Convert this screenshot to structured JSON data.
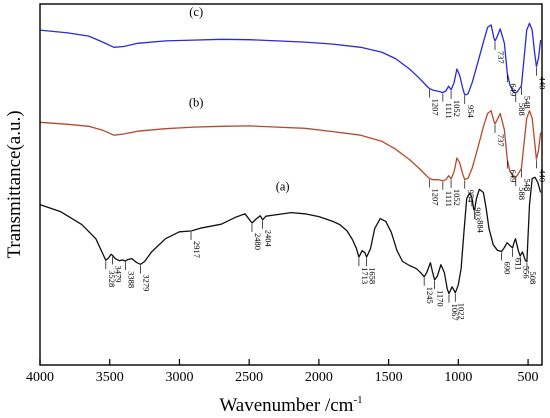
{
  "chart_data": {
    "type": "line",
    "xlabel": "Wavenumber /cm",
    "xlabel_sup": "-1",
    "ylabel": "Transmittance(a.u.)",
    "xlim": [
      4000,
      400
    ],
    "x_reversed": true,
    "xticks": [
      4000,
      3500,
      3000,
      2500,
      2000,
      1500,
      1000,
      500
    ],
    "yticks": [],
    "grid": false,
    "legend": "none",
    "series": [
      {
        "name": "(c)",
        "color": "#2a2ad6",
        "x": [
          4000,
          3800,
          3650,
          3550,
          3470,
          3400,
          3300,
          3100,
          2900,
          2700,
          2500,
          2300,
          2100,
          1900,
          1700,
          1550,
          1450,
          1350,
          1280,
          1220,
          1207,
          1180,
          1140,
          1111,
          1090,
          1070,
          1052,
          1030,
          1010,
          990,
          970,
          954,
          930,
          900,
          860,
          820,
          790,
          765,
          745,
          737,
          725,
          700,
          670,
          649,
          630,
          610,
          600,
          588,
          575,
          560,
          548,
          530,
          510,
          490,
          470,
          455,
          440,
          425,
          410
        ],
        "y": [
          93.5,
          92.8,
          92,
          90.5,
          89.2,
          89.4,
          90.2,
          90.8,
          91,
          91.2,
          91.1,
          90.8,
          90.5,
          90,
          89.2,
          88,
          86.4,
          83.8,
          81.5,
          79.3,
          78.9,
          78.5,
          78.2,
          77.9,
          78.3,
          79.5,
          78.6,
          80.4,
          83.8,
          82.2,
          79.2,
          77.3,
          77.6,
          80.5,
          85.5,
          90.5,
          94.2,
          94.8,
          91.5,
          90.8,
          91.6,
          93.8,
          90.2,
          82.7,
          79.8,
          78.4,
          78.0,
          77.8,
          78.2,
          79.0,
          79.6,
          86,
          93.5,
          95.2,
          93.5,
          88.5,
          84.4,
          86.5,
          91
        ]
      },
      {
        "name": "(b)",
        "color": "#b5492f",
        "x": [
          4000,
          3800,
          3650,
          3550,
          3470,
          3400,
          3300,
          3100,
          2900,
          2700,
          2500,
          2300,
          2100,
          1900,
          1700,
          1550,
          1450,
          1350,
          1280,
          1220,
          1207,
          1180,
          1140,
          1111,
          1090,
          1070,
          1052,
          1030,
          1010,
          990,
          970,
          954,
          930,
          900,
          860,
          820,
          790,
          765,
          745,
          737,
          725,
          700,
          670,
          649,
          630,
          610,
          600,
          588,
          575,
          560,
          548,
          530,
          510,
          490,
          470,
          455,
          440,
          425,
          410
        ],
        "y": [
          70.5,
          70,
          69.5,
          68.5,
          67.3,
          67.6,
          68.3,
          68.9,
          69.3,
          69.5,
          69.6,
          69.3,
          69,
          68.2,
          67.3,
          65.8,
          63.8,
          61.2,
          59,
          56.9,
          56.5,
          56.2,
          56.2,
          55.9,
          56.2,
          57.2,
          56.4,
          58.2,
          61.6,
          60.4,
          57.8,
          56.2,
          56.6,
          59.2,
          64.2,
          69.4,
          72.7,
          73.4,
          70.8,
          70.1,
          70.9,
          72.7,
          68.6,
          61.2,
          58.3,
          57.2,
          56.9,
          56.8,
          57.4,
          58.3,
          59.0,
          65,
          71.5,
          73.4,
          71.5,
          66.5,
          61.3,
          63.5,
          68
        ]
      },
      {
        "name": "(a)",
        "color": "#111111",
        "x": [
          4000,
          3850,
          3700,
          3600,
          3528,
          3510,
          3490,
          3479,
          3460,
          3430,
          3410,
          3388,
          3370,
          3340,
          3310,
          3279,
          3250,
          3200,
          3100,
          3000,
          2917,
          2850,
          2700,
          2600,
          2530,
          2480,
          2450,
          2420,
          2404,
          2380,
          2300,
          2200,
          2100,
          2000,
          1900,
          1850,
          1800,
          1760,
          1730,
          1713,
          1690,
          1670,
          1658,
          1630,
          1600,
          1560,
          1520,
          1480,
          1440,
          1400,
          1350,
          1300,
          1270,
          1245,
          1225,
          1200,
          1185,
          1170,
          1150,
          1125,
          1100,
          1080,
          1067,
          1045,
          1022,
          1000,
          980,
          960,
          940,
          920,
          903,
          890,
          884,
          870,
          850,
          820,
          800,
          780,
          750,
          720,
          690,
          670,
          650,
          630,
          611,
          600,
          590,
          570,
          556,
          540,
          520,
          508,
          490,
          470,
          450,
          430,
          410
        ],
        "y": [
          50,
          48.2,
          45,
          41.5,
          36.1,
          36.6,
          37.6,
          37.3,
          36.5,
          36,
          36.2,
          35.9,
          36.3,
          36.5,
          35.6,
          35.1,
          35.8,
          38.2,
          41.5,
          43.2,
          43.4,
          44.1,
          45.1,
          46.8,
          47.7,
          45.4,
          46.4,
          47.2,
          46.2,
          47.1,
          47.5,
          48,
          47.7,
          47,
          45.8,
          45,
          43.5,
          41.3,
          39,
          36.9,
          38.5,
          38,
          36.9,
          39,
          44,
          46.5,
          45.8,
          43,
          38.5,
          35.8,
          34.8,
          34,
          33,
          32,
          33.2,
          35.5,
          33.2,
          31.2,
          32.2,
          35,
          33,
          29,
          27.8,
          29.5,
          28,
          30,
          34,
          43,
          51.5,
          52.8,
          51.8,
          48.8,
          48.6,
          51.5,
          53.8,
          53,
          49,
          44,
          40,
          38.6,
          38.3,
          39.3,
          40.5,
          39.8,
          39.2,
          40.6,
          41.5,
          38.5,
          37.2,
          38.2,
          36.1,
          35.8,
          50,
          56.5,
          56.8,
          55.5,
          53
        ]
      }
    ],
    "series_labels": [
      {
        "text": "(c)",
        "x": 2880,
        "y": 97
      },
      {
        "text": "(b)",
        "x": 2880,
        "y": 74.5
      },
      {
        "text": "(a)",
        "x": 2260,
        "y": 53.5
      }
    ],
    "peak_labels": [
      {
        "series": 0,
        "text": "1207",
        "x": 1207,
        "y": 78.9
      },
      {
        "series": 0,
        "text": "1111",
        "x": 1111,
        "y": 77.9
      },
      {
        "series": 0,
        "text": "1052",
        "x": 1052,
        "y": 78.6
      },
      {
        "series": 0,
        "text": "954",
        "x": 954,
        "y": 77.3
      },
      {
        "series": 0,
        "text": "737",
        "x": 737,
        "y": 90.8
      },
      {
        "series": 0,
        "text": "649",
        "x": 649,
        "y": 82.7
      },
      {
        "series": 0,
        "text": "588",
        "x": 588,
        "y": 77.8
      },
      {
        "series": 0,
        "text": "548",
        "x": 548,
        "y": 79.6
      },
      {
        "series": 0,
        "text": "440",
        "x": 440,
        "y": 84.4
      },
      {
        "series": 1,
        "text": "1207",
        "x": 1207,
        "y": 56.5
      },
      {
        "series": 1,
        "text": "1111",
        "x": 1111,
        "y": 55.9
      },
      {
        "series": 1,
        "text": "1052",
        "x": 1052,
        "y": 56.4
      },
      {
        "series": 1,
        "text": "954",
        "x": 954,
        "y": 56.2
      },
      {
        "series": 1,
        "text": "737",
        "x": 737,
        "y": 70.1
      },
      {
        "series": 1,
        "text": "649",
        "x": 649,
        "y": 61.2
      },
      {
        "series": 1,
        "text": "588",
        "x": 588,
        "y": 56.8
      },
      {
        "series": 1,
        "text": "548",
        "x": 548,
        "y": 59.0
      },
      {
        "series": 1,
        "text": "440",
        "x": 440,
        "y": 61.3
      },
      {
        "series": 2,
        "text": "3528",
        "x": 3528,
        "y": 36.1
      },
      {
        "series": 2,
        "text": "3479",
        "x": 3479,
        "y": 37.3
      },
      {
        "series": 2,
        "text": "3388",
        "x": 3388,
        "y": 35.9
      },
      {
        "series": 2,
        "text": "3279",
        "x": 3279,
        "y": 35.1
      },
      {
        "series": 2,
        "text": "2917",
        "x": 2917,
        "y": 43.4
      },
      {
        "series": 2,
        "text": "2480",
        "x": 2480,
        "y": 45.4
      },
      {
        "series": 2,
        "text": "2404",
        "x": 2404,
        "y": 46.2
      },
      {
        "series": 2,
        "text": "1713",
        "x": 1713,
        "y": 36.9
      },
      {
        "series": 2,
        "text": "1658",
        "x": 1658,
        "y": 36.9
      },
      {
        "series": 2,
        "text": "1245",
        "x": 1245,
        "y": 32.0
      },
      {
        "series": 2,
        "text": "1170",
        "x": 1170,
        "y": 31.2
      },
      {
        "series": 2,
        "text": "1067",
        "x": 1067,
        "y": 27.8
      },
      {
        "series": 2,
        "text": "1022",
        "x": 1022,
        "y": 28.0
      },
      {
        "series": 2,
        "text": "903",
        "x": 903,
        "y": 51.8
      },
      {
        "series": 2,
        "text": "884",
        "x": 884,
        "y": 48.6
      },
      {
        "series": 2,
        "text": "690",
        "x": 690,
        "y": 38.3
      },
      {
        "series": 2,
        "text": "611",
        "x": 611,
        "y": 39.2
      },
      {
        "series": 2,
        "text": "556",
        "x": 556,
        "y": 37.2
      },
      {
        "series": 2,
        "text": "508",
        "x": 508,
        "y": 35.8
      }
    ]
  }
}
